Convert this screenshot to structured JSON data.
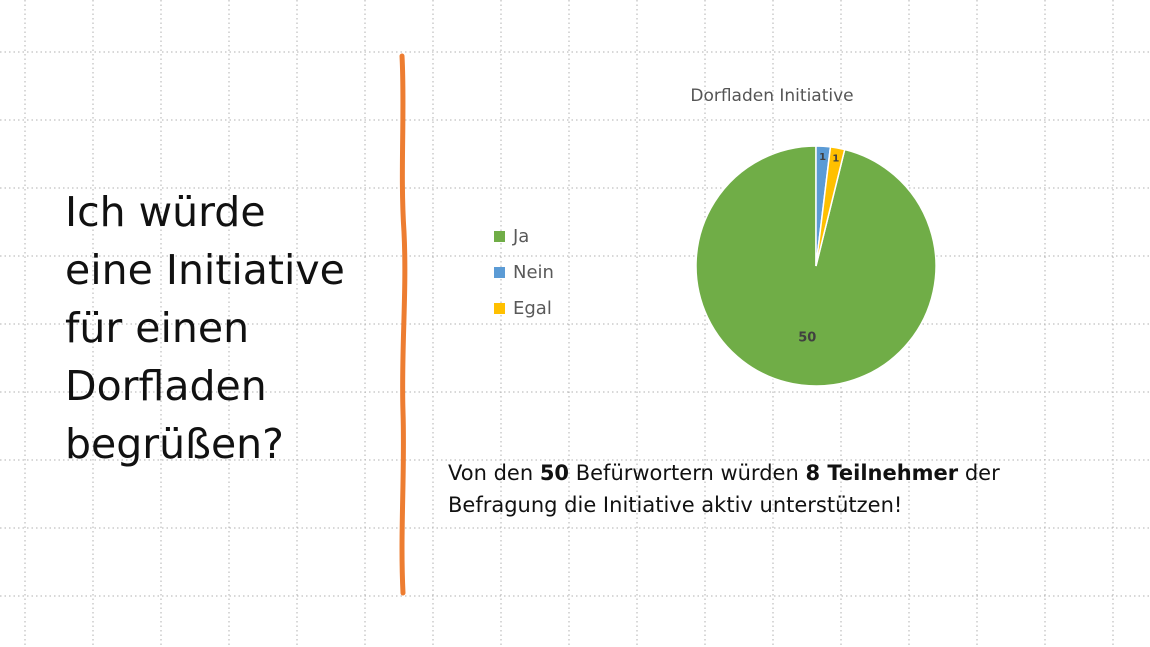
{
  "question": {
    "lines": [
      "Ich würde",
      "eine Initiative",
      "für einen",
      "Dorfladen",
      "begrüßen?"
    ]
  },
  "colors": {
    "ja": "#70ad47",
    "nein": "#5b9bd5",
    "egal": "#ffc000",
    "divider": "#ed7d31",
    "grid": "#b0b0b0"
  },
  "chart_data": {
    "type": "pie",
    "title": "Dorfladen Initiative",
    "categories": [
      "Ja",
      "Nein",
      "Egal"
    ],
    "values": [
      50,
      1,
      1
    ],
    "data_labels": [
      "50",
      "1",
      "1"
    ],
    "legend_position": "left"
  },
  "note": {
    "t1": "Von den ",
    "b1": "50",
    "t2": " Befürwortern würden ",
    "b2": "8 Teilnehmer",
    "t3": " der Befragung die Initiative aktiv unterstützen!"
  }
}
